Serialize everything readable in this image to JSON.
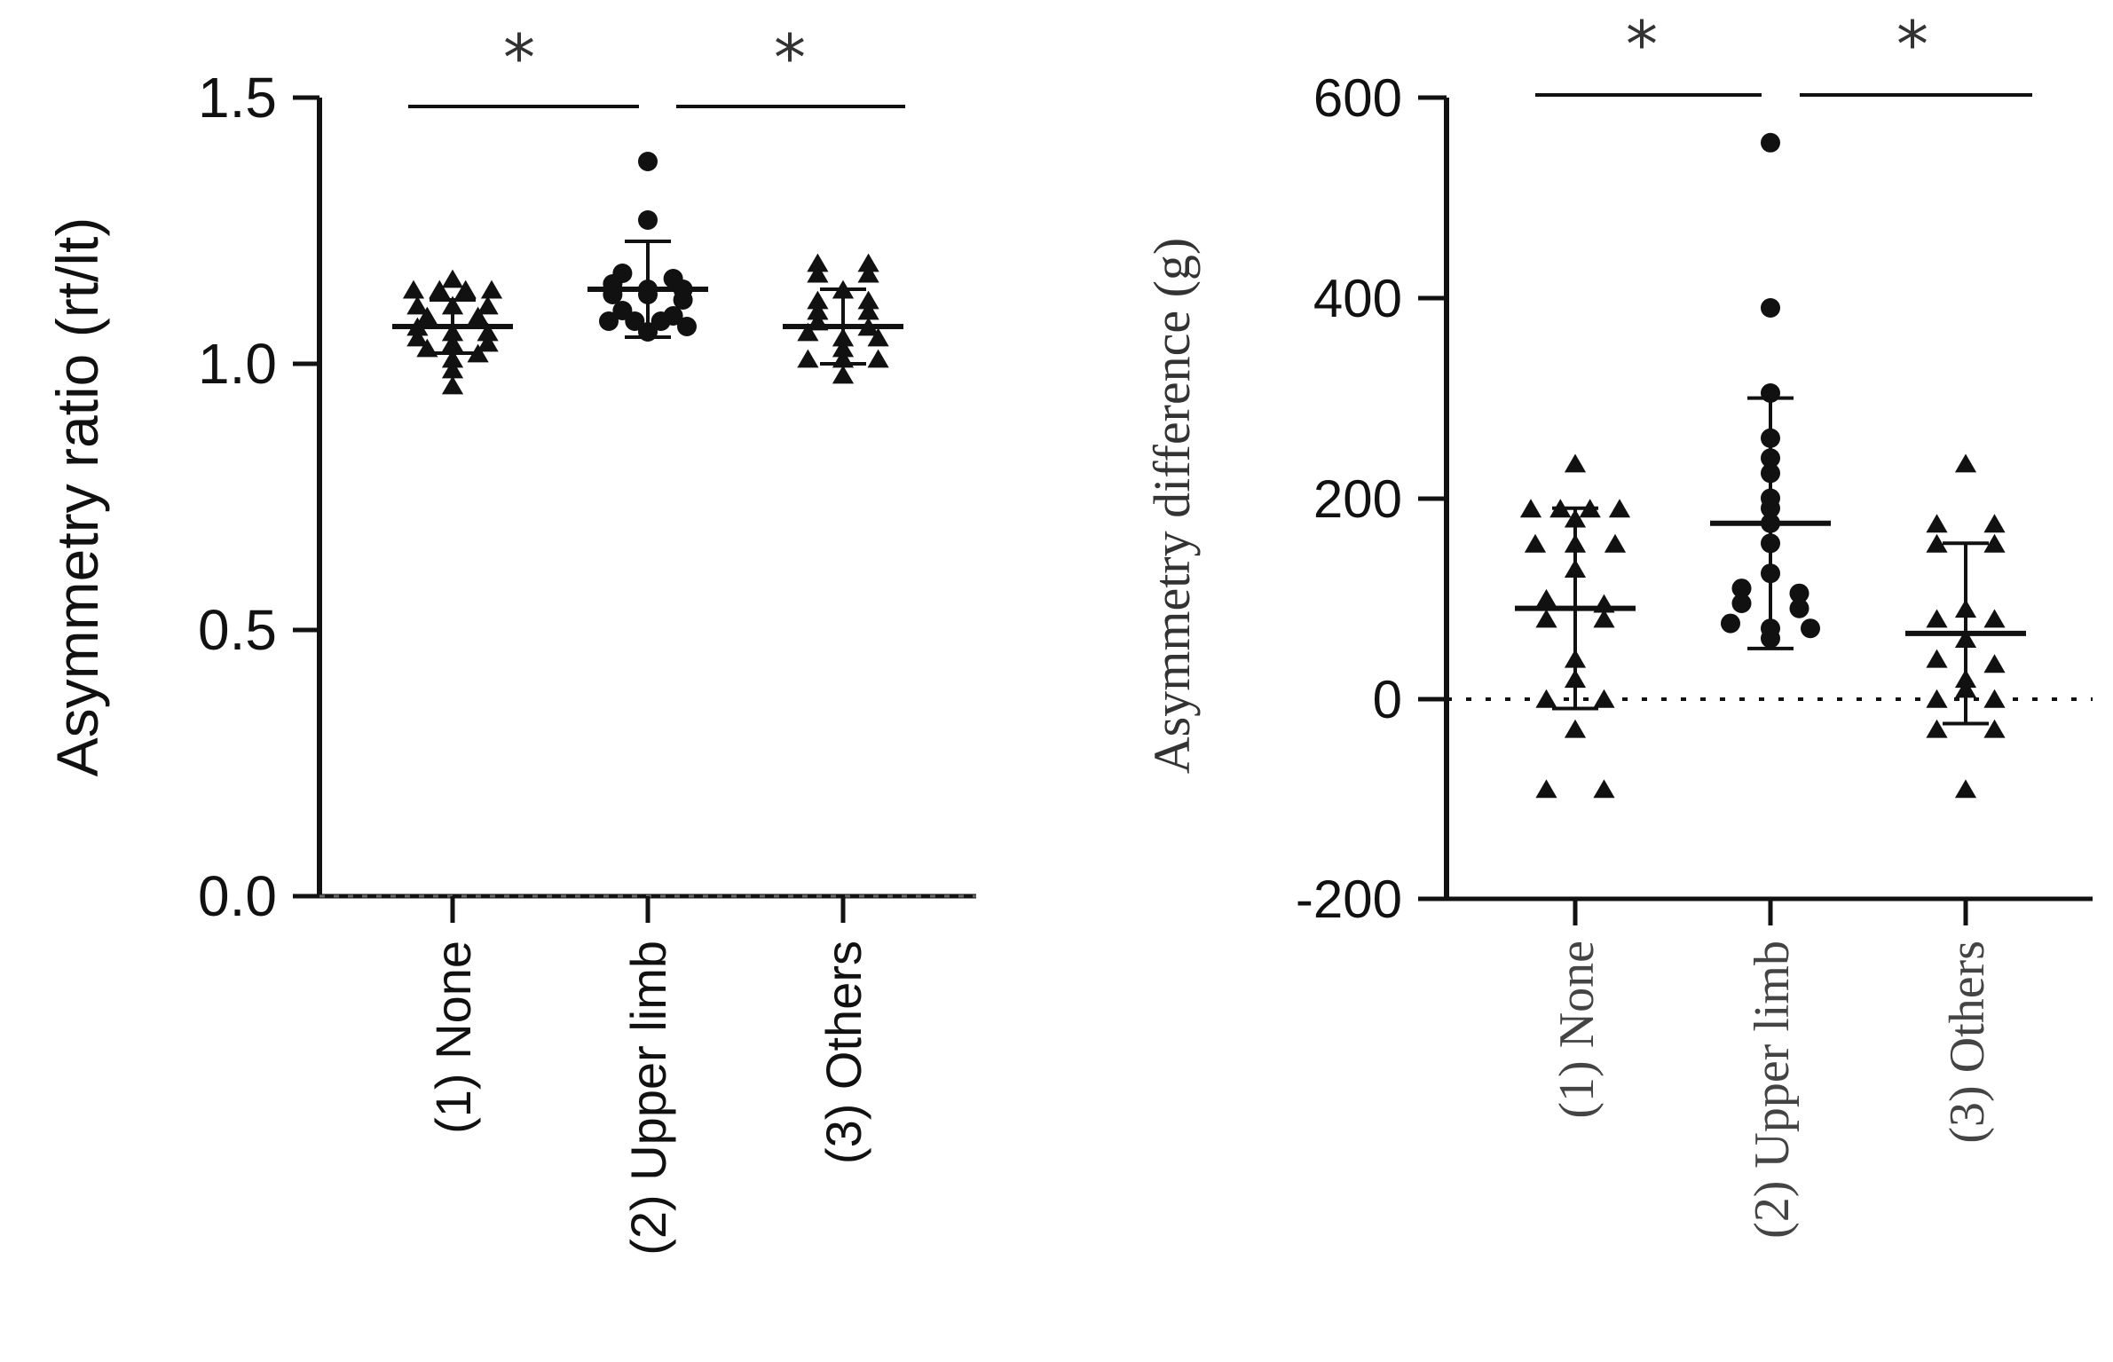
{
  "chart_data": [
    {
      "type": "scatter",
      "ylabel": "Asymmetry ratio (rt/lt)",
      "yticks": [
        "0.0",
        "0.5",
        "1.0",
        "1.5"
      ],
      "ylim": [
        0,
        1.5
      ],
      "reference_line": 0,
      "categories": [
        "(1) None",
        "(2) Upper limb",
        "(3) Others"
      ],
      "significance": [
        {
          "from": 0,
          "to": 1,
          "label": "*"
        },
        {
          "from": 1,
          "to": 2,
          "label": "*"
        }
      ],
      "series": [
        {
          "category": "(1) None",
          "marker": "triangle",
          "mean": 1.07,
          "sd": 0.05,
          "values": [
            1.16,
            1.14,
            1.14,
            1.14,
            1.14,
            1.11,
            1.11,
            1.11,
            1.09,
            1.09,
            1.07,
            1.06,
            1.06,
            1.05,
            1.04,
            1.04,
            1.03,
            1.02,
            1.01,
            0.99,
            0.96
          ]
        },
        {
          "category": "(2) Upper limb",
          "marker": "circle",
          "mean": 1.14,
          "sd": 0.09,
          "values": [
            1.38,
            1.27,
            1.17,
            1.16,
            1.15,
            1.14,
            1.14,
            1.13,
            1.13,
            1.12,
            1.1,
            1.09,
            1.08,
            1.08,
            1.08,
            1.07,
            1.06
          ]
        },
        {
          "category": "(3) Others",
          "marker": "triangle",
          "mean": 1.07,
          "sd": 0.07,
          "values": [
            1.19,
            1.19,
            1.17,
            1.17,
            1.14,
            1.12,
            1.12,
            1.1,
            1.1,
            1.08,
            1.07,
            1.06,
            1.05,
            1.05,
            1.03,
            1.01,
            1.01,
            1.01,
            0.98
          ]
        }
      ]
    },
    {
      "type": "scatter",
      "ylabel": "Asymmetry difference (g)",
      "yticks": [
        "-200",
        "0",
        "200",
        "400",
        "600"
      ],
      "ylim": [
        -200,
        600
      ],
      "reference_line": 0,
      "categories": [
        "(1) None",
        "(2) Upper limb",
        "(3) Others"
      ],
      "significance": [
        {
          "from": 0,
          "to": 1,
          "label": "*"
        },
        {
          "from": 1,
          "to": 2,
          "label": "*"
        }
      ],
      "series": [
        {
          "category": "(1) None",
          "marker": "triangle",
          "mean": 90,
          "sd": 100,
          "values": [
            235,
            190,
            190,
            190,
            190,
            180,
            155,
            155,
            155,
            130,
            100,
            95,
            80,
            80,
            40,
            20,
            0,
            0,
            -30,
            -90,
            -90
          ]
        },
        {
          "category": "(2) Upper limb",
          "marker": "circle",
          "mean": 175,
          "sd": 125,
          "values": [
            555,
            390,
            305,
            260,
            240,
            225,
            200,
            190,
            175,
            155,
            125,
            110,
            105,
            95,
            90,
            75,
            70,
            70,
            60
          ]
        },
        {
          "category": "(3) Others",
          "marker": "triangle",
          "mean": 65,
          "sd": 90,
          "values": [
            235,
            175,
            175,
            155,
            155,
            90,
            80,
            80,
            60,
            40,
            35,
            20,
            10,
            0,
            0,
            -30,
            -30,
            -90
          ]
        }
      ]
    }
  ]
}
